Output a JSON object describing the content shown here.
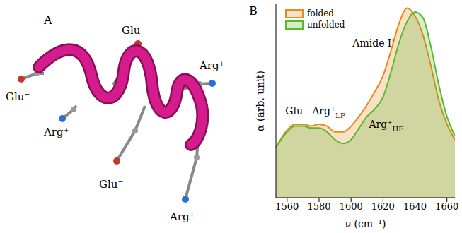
{
  "chart_data": {
    "type": "area",
    "panel_label": "B",
    "x_label": "ν (cm⁻¹)",
    "y_label": "α (arb. unit)",
    "x": [
      1553,
      1560,
      1565,
      1570,
      1575,
      1580,
      1585,
      1590,
      1595,
      1600,
      1605,
      1610,
      1615,
      1620,
      1625,
      1630,
      1635,
      1640,
      1645,
      1650,
      1655,
      1660,
      1665
    ],
    "series": [
      {
        "name": "folded",
        "color": "#e8891c",
        "values": [
          0.26,
          0.35,
          0.38,
          0.38,
          0.37,
          0.38,
          0.37,
          0.34,
          0.34,
          0.37,
          0.42,
          0.48,
          0.55,
          0.63,
          0.76,
          0.9,
          0.98,
          0.94,
          0.84,
          0.68,
          0.5,
          0.38,
          0.3
        ]
      },
      {
        "name": "unfolded",
        "color": "#5cb82e",
        "values": [
          0.26,
          0.34,
          0.37,
          0.37,
          0.36,
          0.36,
          0.34,
          0.3,
          0.28,
          0.3,
          0.36,
          0.42,
          0.46,
          0.52,
          0.65,
          0.8,
          0.91,
          0.96,
          0.93,
          0.78,
          0.58,
          0.42,
          0.32
        ]
      }
    ],
    "xlim": [
      1553,
      1665
    ],
    "xticks": [
      1560,
      1580,
      1600,
      1620,
      1640,
      1660
    ],
    "ylim": [
      0,
      1
    ],
    "tick_labels": "x",
    "legend": "upper left",
    "annotations": [
      {
        "text": "Amide I'",
        "x": 1614,
        "y": 0.78
      },
      {
        "text": "Glu⁻",
        "x": 1566,
        "y": 0.43
      },
      {
        "text": "Arg⁺",
        "sub": "LF",
        "x": 1586,
        "y": 0.43
      },
      {
        "text": "Arg⁺",
        "sub": "HF",
        "x": 1622,
        "y": 0.36
      }
    ]
  },
  "diagram": {
    "panel_label": "A",
    "labels": [
      "Glu⁻",
      "Arg⁺",
      "Glu⁻",
      "Arg⁺",
      "Glu⁻",
      "Arg⁺"
    ]
  }
}
